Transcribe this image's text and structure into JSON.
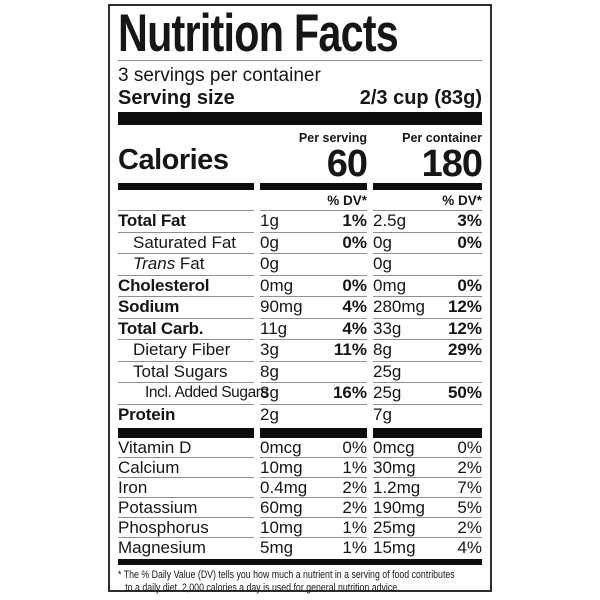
{
  "header": {
    "title": "Nutrition Facts",
    "servings_per_container": "3 servings per container",
    "serving_size_label": "Serving size",
    "serving_size_value": "2/3 cup (83g)"
  },
  "calories": {
    "label": "Calories",
    "per_serving_label": "Per serving",
    "per_serving_value": "60",
    "per_container_label": "Per container",
    "per_container_value": "180"
  },
  "dv_header": "% DV*",
  "nutrients": [
    {
      "name": "Total Fat",
      "bold": true,
      "indent": 0,
      "serving_amount": "1g",
      "serving_dv": "1%",
      "container_amount": "2.5g",
      "container_dv": "3%",
      "dv_bold": true
    },
    {
      "name": "Saturated Fat",
      "bold": false,
      "indent": 1,
      "serving_amount": "0g",
      "serving_dv": "0%",
      "container_amount": "0g",
      "container_dv": "0%",
      "dv_bold": true
    },
    {
      "name_italic": "Trans",
      "name": " Fat",
      "bold": false,
      "indent": 1,
      "serving_amount": "0g",
      "serving_dv": "",
      "container_amount": "0g",
      "container_dv": "",
      "dv_bold": true
    },
    {
      "name": "Cholesterol",
      "bold": true,
      "indent": 0,
      "serving_amount": "0mg",
      "serving_dv": "0%",
      "container_amount": "0mg",
      "container_dv": "0%",
      "dv_bold": true
    },
    {
      "name": "Sodium",
      "bold": true,
      "indent": 0,
      "serving_amount": "90mg",
      "serving_dv": "4%",
      "container_amount": "280mg",
      "container_dv": "12%",
      "dv_bold": true
    },
    {
      "name": "Total Carb.",
      "bold": true,
      "indent": 0,
      "serving_amount": "11g",
      "serving_dv": "4%",
      "container_amount": "33g",
      "container_dv": "12%",
      "dv_bold": true
    },
    {
      "name": "Dietary Fiber",
      "bold": false,
      "indent": 1,
      "serving_amount": "3g",
      "serving_dv": "11%",
      "container_amount": "8g",
      "container_dv": "29%",
      "dv_bold": true
    },
    {
      "name": "Total Sugars",
      "bold": false,
      "indent": 1,
      "serving_amount": "8g",
      "serving_dv": "",
      "container_amount": "25g",
      "container_dv": "",
      "dv_bold": true
    },
    {
      "name": "Incl. Added Sugars",
      "bold": false,
      "indent": 2,
      "condensed": true,
      "serving_amount": "8g",
      "serving_dv": "16%",
      "container_amount": "25g",
      "container_dv": "50%",
      "dv_bold": true
    },
    {
      "name": "Protein",
      "bold": true,
      "indent": 0,
      "serving_amount": "2g",
      "serving_dv": "",
      "container_amount": "7g",
      "container_dv": "",
      "dv_bold": true
    }
  ],
  "vitamins": [
    {
      "name": "Vitamin D",
      "serving_amount": "0mcg",
      "serving_dv": "0%",
      "container_amount": "0mcg",
      "container_dv": "0%",
      "dv_bold": false
    },
    {
      "name": "Calcium",
      "serving_amount": "10mg",
      "serving_dv": "1%",
      "container_amount": "30mg",
      "container_dv": "2%",
      "dv_bold": false
    },
    {
      "name": "Iron",
      "serving_amount": "0.4mg",
      "serving_dv": "2%",
      "container_amount": "1.2mg",
      "container_dv": "7%",
      "dv_bold": false
    },
    {
      "name": "Potassium",
      "serving_amount": "60mg",
      "serving_dv": "2%",
      "container_amount": "190mg",
      "container_dv": "5%",
      "dv_bold": false
    },
    {
      "name": "Phosphorus",
      "serving_amount": "10mg",
      "serving_dv": "1%",
      "container_amount": "25mg",
      "container_dv": "2%",
      "dv_bold": false
    },
    {
      "name": "Magnesium",
      "serving_amount": "5mg",
      "serving_dv": "1%",
      "container_amount": "15mg",
      "container_dv": "4%",
      "dv_bold": false
    }
  ],
  "footnote": {
    "line1": "* The % Daily Value (DV) tells you how much a nutrient in a serving of food contributes",
    "line2": "to a daily diet. 2,000 calories a day is used for general nutrition advice."
  },
  "colors": {
    "ink": "#161616",
    "hairline": "#8f8f8f",
    "bar": "#0d0d0d",
    "border": "#2e2e2e",
    "background": "#ffffff"
  }
}
